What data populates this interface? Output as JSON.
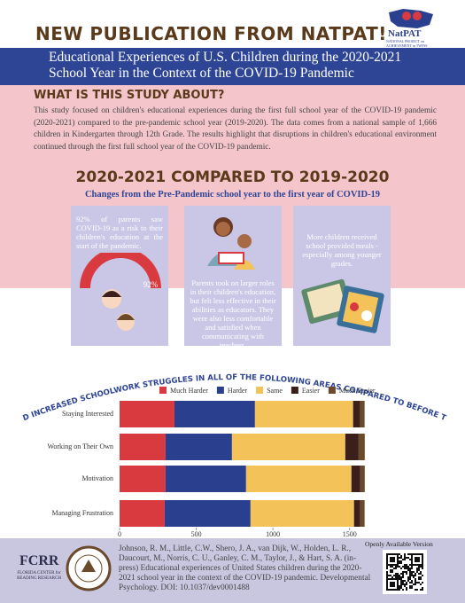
{
  "header": {
    "title": "NEW PUBLICATION FROM NATPAT!",
    "logo": "NatPAT",
    "logo_sub": "NATIONAL PROJECT on ACHIEVEMENT in TWINS"
  },
  "banner": {
    "title": "Educational Experiences of U.S. Children during the 2020-2021 School Year in the Context of the COVID-19 Pandemic"
  },
  "about": {
    "heading": "WHAT IS THIS STUDY ABOUT?",
    "text": "This study focused on children's educational experiences during the first full school year of the COVID-19 pandemic (2020-2021) compared to the pre-pandemic school year (2019-2020). The data comes from a national sample of 1,666 children in Kindergarten through 12th Grade. The results highlight that disruptions in children's educational environment continued through the first full school year of the COVID-19 pandemic."
  },
  "comparison": {
    "heading": "2020-2021 COMPARED TO 2019-2020",
    "subtitle": "Changes from the Pre-Pandemic school year to the first year of COVID-19",
    "cards": [
      {
        "text": "92% of parents saw COVID-19 as a risk to their children's education at the start of the pandemic.",
        "stat": "92%"
      },
      {
        "text": "Parents took on larger roles in their children's education, but felt less effective in their abilities as educators. They were also less comfortable and satisfied when communicating with teachers."
      },
      {
        "text": "More children received school provided meals - especially among younger grades."
      }
    ]
  },
  "chart_data": {
    "type": "stacked_bar",
    "orientation": "horizontal",
    "title": "CHILDREN HAD INCREASED SCHOOLWORK STRUGGLES IN ALL OF THE FOLLOWING AREAS COMPARED TO BEFORE THE PANDEMIC",
    "categories": [
      "Staying Interested",
      "Working on Their Own",
      "Motivation",
      "Managing Frustration"
    ],
    "series": [
      {
        "name": "Much Harder",
        "color": "#d93a3f",
        "values": [
          358,
          300,
          300,
          294
        ]
      },
      {
        "name": "Harder",
        "color": "#2b3f8f",
        "values": [
          525,
          433,
          525,
          560
        ]
      },
      {
        "name": "Same",
        "color": "#f3c35a",
        "values": [
          640,
          739,
          687,
          675
        ]
      },
      {
        "name": "Easier",
        "color": "#3a1f1a",
        "values": [
          46,
          87,
          58,
          40
        ]
      },
      {
        "name": "Much Easier",
        "color": "#6b4a2a",
        "values": [
          29,
          40,
          29,
          29
        ]
      }
    ],
    "xlim": [
      0,
      1600
    ],
    "xticks": [
      0,
      500,
      1000,
      1500
    ]
  },
  "footer": {
    "logo_left": "FCRR",
    "logo_left_sub": "FLORIDA CENTER for READING RESEARCH",
    "citation": "Johnson, R. M., Little, C.W., Shero, J. A., van Dijk, W., Holden, L. R., Daucourt, M., Norris, C. U., Ganley, C. M., Taylor, J., & Hart, S. A. (in-press) Educational experiences of United States children during the 2020-2021 school year in the context of the COVID-19 pandemic. Developmental Psychology. DOI: 10.1037/dev0001488",
    "open_access": "Openly Available Version"
  }
}
